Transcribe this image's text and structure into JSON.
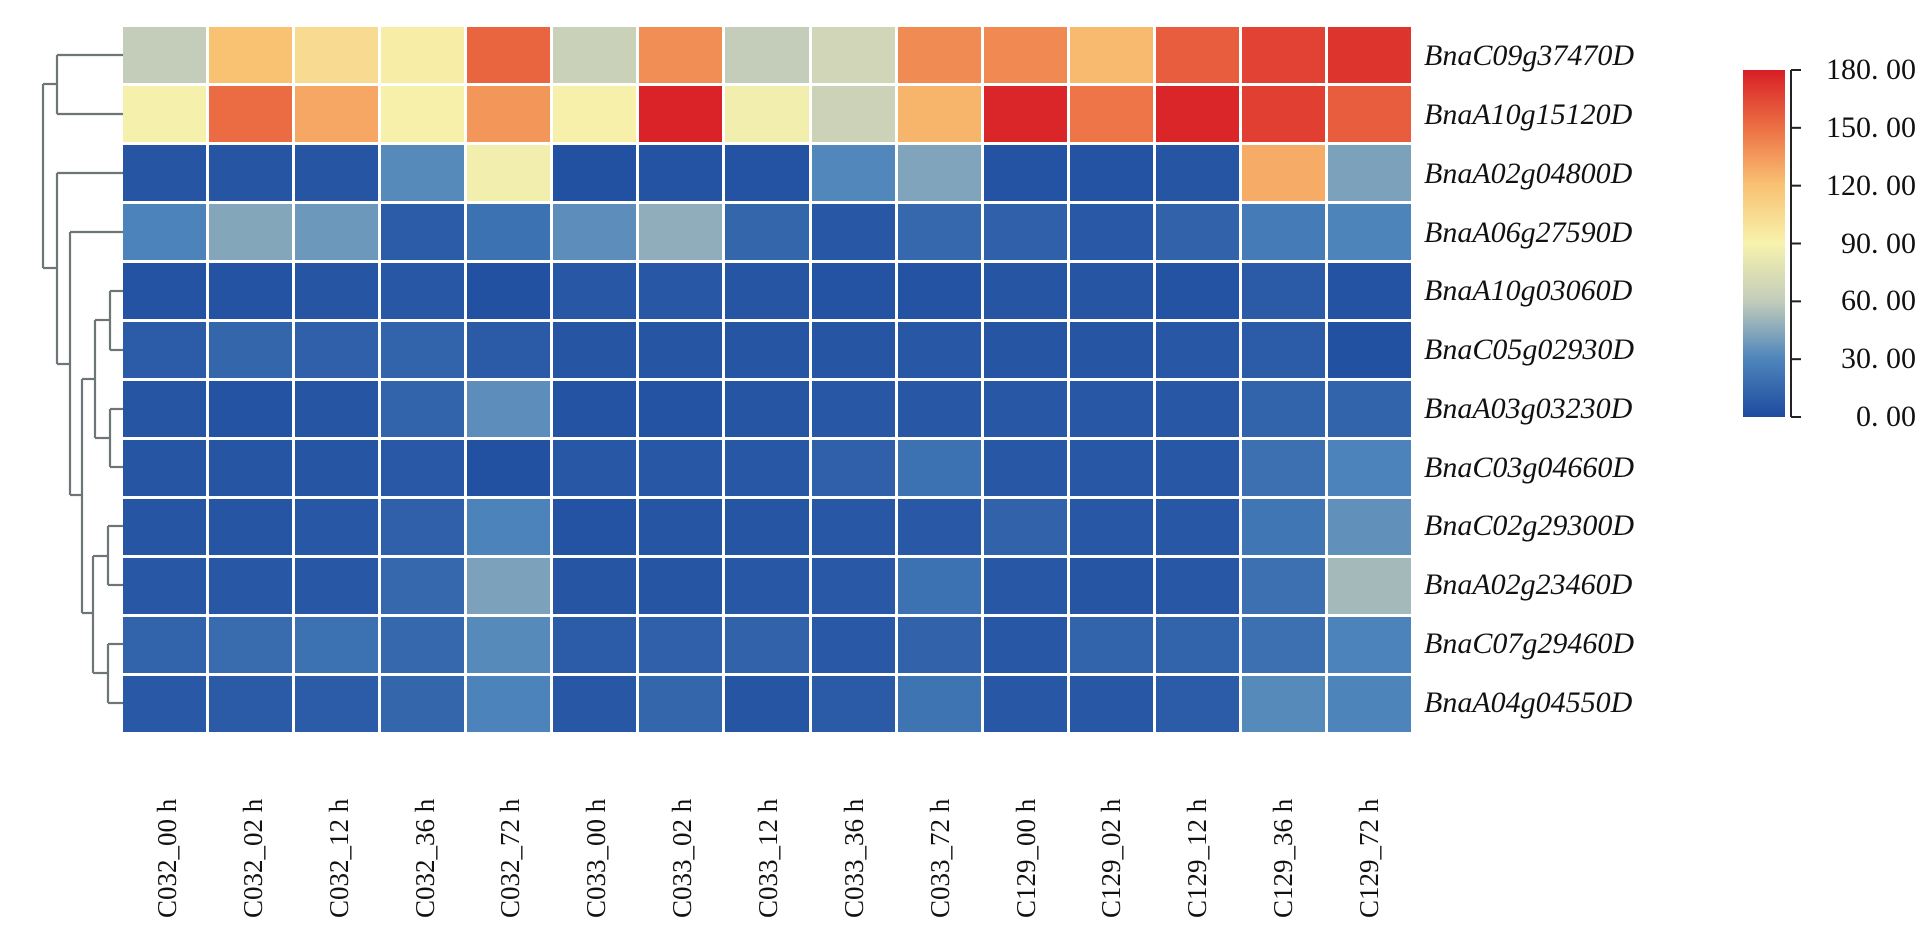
{
  "figure": {
    "background": "#ffffff",
    "dendrogram_color": "#6e7577",
    "cell_gap_color": "#ffffff"
  },
  "chart_data": {
    "type": "heatmap",
    "title": "",
    "xlabel": "",
    "ylabel": "",
    "columns": [
      "C032_00 h",
      "C032_02 h",
      "C032_12 h",
      "C032_36 h",
      "C032_72 h",
      "C033_00 h",
      "C033_02 h",
      "C033_12 h",
      "C033_36 h",
      "C033_72 h",
      "C129_00 h",
      "C129_02 h",
      "C129_12 h",
      "C129_36 h",
      "C129_72 h"
    ],
    "rows": [
      "BnaC09g37470D",
      "BnaA10g15120D",
      "BnaA02g04800D",
      "BnaA06g27590D",
      "BnaA10g03060D",
      "BnaC05g02930D",
      "BnaA03g03230D",
      "BnaC03g04660D",
      "BnaC02g29300D",
      "BnaA02g23460D",
      "BnaC07g29460D",
      "BnaA04g04550D"
    ],
    "values": [
      [
        61,
        120,
        105,
        93,
        154,
        64,
        139,
        61,
        68,
        140,
        141,
        123,
        157,
        167,
        172
      ],
      [
        89,
        152,
        130,
        91,
        136,
        91,
        178,
        87,
        65,
        125,
        177,
        148,
        177,
        168,
        157
      ],
      [
        5,
        5,
        5,
        32,
        87,
        3,
        4,
        4,
        31,
        43,
        4,
        4,
        5,
        128,
        42
      ],
      [
        29,
        44,
        38,
        9,
        20,
        34,
        47,
        14,
        6,
        15,
        11,
        7,
        12,
        25,
        30
      ],
      [
        4,
        4,
        5,
        6,
        3,
        6,
        6,
        5,
        4,
        4,
        5,
        5,
        4,
        8,
        4
      ],
      [
        9,
        14,
        11,
        13,
        8,
        5,
        5,
        5,
        5,
        6,
        5,
        5,
        6,
        9,
        3
      ],
      [
        5,
        4,
        5,
        13,
        34,
        4,
        4,
        5,
        6,
        6,
        6,
        6,
        6,
        13,
        13
      ],
      [
        5,
        5,
        5,
        7,
        3,
        6,
        6,
        6,
        11,
        20,
        6,
        6,
        6,
        19,
        29
      ],
      [
        5,
        5,
        6,
        11,
        29,
        4,
        5,
        5,
        6,
        7,
        12,
        6,
        6,
        22,
        35
      ],
      [
        6,
        6,
        6,
        15,
        42,
        5,
        5,
        6,
        7,
        20,
        6,
        5,
        6,
        19,
        52
      ],
      [
        13,
        17,
        20,
        15,
        32,
        9,
        11,
        12,
        7,
        12,
        6,
        13,
        13,
        19,
        29
      ],
      [
        7,
        8,
        9,
        14,
        29,
        6,
        14,
        5,
        8,
        21,
        6,
        6,
        9,
        32,
        30
      ]
    ],
    "value_range": [
      0,
      180
    ],
    "colorscale_stops": [
      [
        0,
        "#1e4b9f"
      ],
      [
        30,
        "#4d85bb"
      ],
      [
        60,
        "#c2ccba"
      ],
      [
        90,
        "#f7f2ad"
      ],
      [
        120,
        "#f9c273"
      ],
      [
        150,
        "#ec7044"
      ],
      [
        180,
        "#d81e26"
      ]
    ],
    "colorbar": {
      "position": "right",
      "ticks": [
        {
          "value": 180,
          "label": "180. 00"
        },
        {
          "value": 150,
          "label": "150. 00"
        },
        {
          "value": 120,
          "label": "120. 00"
        },
        {
          "value": 90,
          "label": "90. 00"
        },
        {
          "value": 60,
          "label": "60. 00"
        },
        {
          "value": 30,
          "label": "30. 00"
        },
        {
          "value": 0,
          "label": "0. 00"
        }
      ]
    },
    "grid": false,
    "row_dendrogram_segments": [
      [
        57,
        55,
        123,
        55
      ],
      [
        57,
        114,
        123,
        114
      ],
      [
        57,
        173,
        123,
        173
      ],
      [
        70,
        232,
        123,
        232
      ],
      [
        110,
        291,
        123,
        291
      ],
      [
        110,
        350,
        123,
        350
      ],
      [
        110,
        409,
        123,
        409
      ],
      [
        110,
        467,
        123,
        467
      ],
      [
        108,
        526,
        123,
        526
      ],
      [
        108,
        585,
        123,
        585
      ],
      [
        108,
        644,
        123,
        644
      ],
      [
        108,
        703,
        123,
        703
      ],
      [
        57,
        55,
        57,
        114
      ],
      [
        43,
        84,
        43,
        268
      ],
      [
        57,
        173,
        57,
        364
      ],
      [
        70,
        232,
        70,
        495
      ],
      [
        82,
        379,
        82,
        613
      ],
      [
        95,
        320,
        95,
        438
      ],
      [
        110,
        291,
        110,
        350
      ],
      [
        110,
        409,
        110,
        467
      ],
      [
        93,
        556,
        93,
        673
      ],
      [
        108,
        526,
        108,
        585
      ],
      [
        108,
        644,
        108,
        703
      ],
      [
        43,
        84,
        57,
        84
      ],
      [
        43,
        268,
        57,
        268
      ],
      [
        57,
        364,
        70,
        364
      ],
      [
        70,
        495,
        82,
        495
      ],
      [
        82,
        379,
        95,
        379
      ],
      [
        82,
        613,
        93,
        613
      ],
      [
        95,
        320,
        110,
        320
      ],
      [
        95,
        438,
        110,
        438
      ],
      [
        93,
        556,
        108,
        556
      ],
      [
        93,
        673,
        108,
        673
      ]
    ]
  }
}
